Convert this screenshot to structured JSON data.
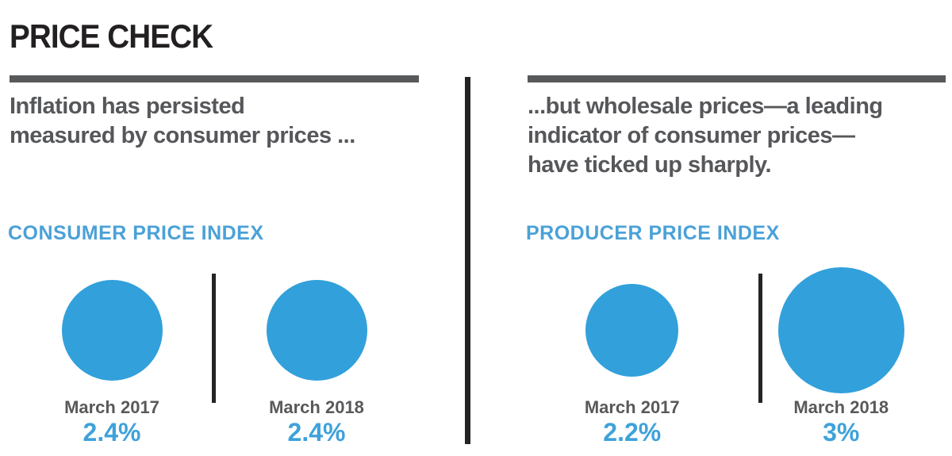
{
  "title": "PRICE CHECK",
  "colors": {
    "accent_blue": "#32a0db",
    "blue_text": "#3ea2da",
    "gray_text": "#58595b",
    "divider_dark": "#242424"
  },
  "panels": [
    {
      "heading": "Inflation has persisted\nmeasured by consumer prices ...",
      "kicker": "CONSUMER PRICE INDEX",
      "items": [
        {
          "label": "March 2017",
          "value": 2.4,
          "display": "2.4%"
        },
        {
          "label": "March 2018",
          "value": 2.4,
          "display": "2.4%"
        }
      ]
    },
    {
      "heading": "...but wholesale prices—a leading\nindicator of consumer prices—\nhave ticked up sharply.",
      "kicker": "PRODUCER PRICE INDEX",
      "items": [
        {
          "label": "March 2017",
          "value": 2.2,
          "display": "2.2%"
        },
        {
          "label": "March 2018",
          "value": 3,
          "display": "3%"
        }
      ]
    }
  ],
  "chart_data": [
    {
      "type": "bubble",
      "title": "CONSUMER PRICE INDEX",
      "categories": [
        "March 2017",
        "March 2018"
      ],
      "values": [
        2.4,
        2.4
      ],
      "value_labels": [
        "2.4%",
        "2.4%"
      ],
      "unit": "percent year-over-year",
      "layout_hint": "circle diameter proportional to value, labels below circles"
    },
    {
      "type": "bubble",
      "title": "PRODUCER PRICE INDEX",
      "categories": [
        "March 2017",
        "March 2018"
      ],
      "values": [
        2.2,
        3.0
      ],
      "value_labels": [
        "2.2%",
        "3%"
      ],
      "unit": "percent year-over-year",
      "layout_hint": "circle diameter proportional to value, labels below circles"
    }
  ]
}
